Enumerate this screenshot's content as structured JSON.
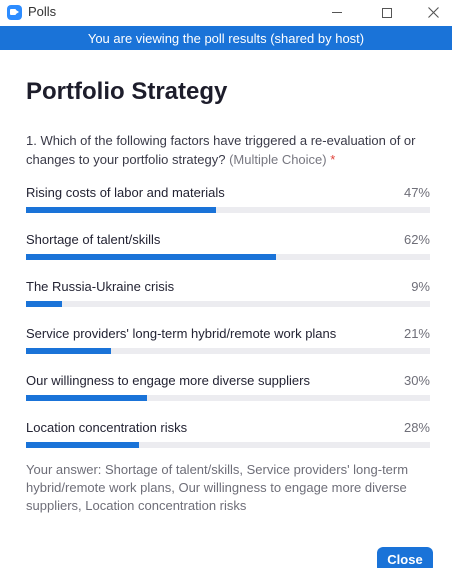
{
  "window": {
    "title": "Polls",
    "app_icon": "video-camera-icon",
    "controls": [
      "minimize",
      "maximize",
      "close"
    ]
  },
  "banner": {
    "text": "You are viewing the poll results (shared by host)"
  },
  "poll": {
    "title": "Portfolio Strategy",
    "question": {
      "text": "1. Which of the following factors have triggered a re-evaluation of or changes to your portfolio strategy?",
      "hint": "(Multiple Choice)",
      "required_marker": "*"
    },
    "options": [
      {
        "label": "Rising costs of labor and materials",
        "percent_label": "47%",
        "percent": 47
      },
      {
        "label": "Shortage of talent/skills",
        "percent_label": "62%",
        "percent": 62
      },
      {
        "label": "The Russia-Ukraine crisis",
        "percent_label": "9%",
        "percent": 9
      },
      {
        "label": "Service providers' long-term hybrid/remote work plans",
        "percent_label": "21%",
        "percent": 21
      },
      {
        "label": "Our willingness to engage more diverse suppliers",
        "percent_label": "30%",
        "percent": 30
      },
      {
        "label": "Location concentration risks",
        "percent_label": "28%",
        "percent": 28
      }
    ],
    "your_answer": "Your answer: Shortage of talent/skills, Service providers' long-term hybrid/remote work plans, Our willingness to engage more diverse suppliers, Location concentration risks"
  },
  "footer": {
    "close_label": "Close"
  },
  "colors": {
    "accent": "#1a73d8",
    "track": "#ececf0",
    "required": "#e0423a"
  }
}
